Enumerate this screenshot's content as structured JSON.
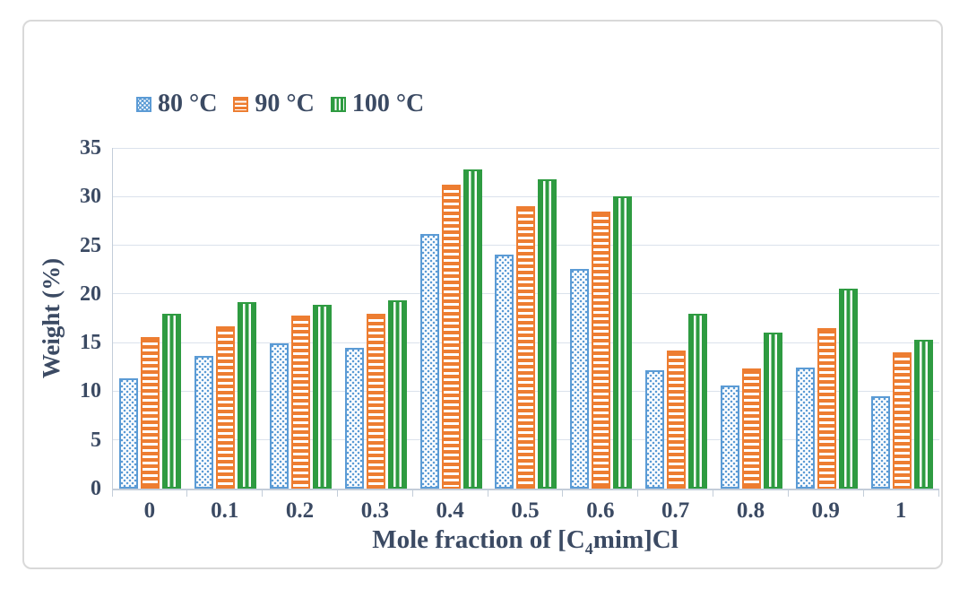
{
  "figure": {
    "frame_border_color": "#d9d9d9",
    "background_color": "#ffffff",
    "text_color": "#3b4a63",
    "grid_color": "#dbe2ec",
    "axis_color": "#c3cdd9"
  },
  "chart_data": {
    "type": "bar",
    "title": "",
    "xlabel": "Mole fraction of [C4mim]Cl",
    "xlabel_parts": {
      "prefix": "Mole fraction of [C",
      "sub": "4",
      "suffix": "mim]Cl"
    },
    "ylabel": "Weight (%)",
    "categories": [
      "0",
      "0.1",
      "0.2",
      "0.3",
      "0.4",
      "0.5",
      "0.6",
      "0.7",
      "0.8",
      "0.9",
      "1"
    ],
    "series": [
      {
        "name": "80 °C",
        "color": "#5b9bd5",
        "pattern": "dots",
        "values": [
          11.3,
          13.6,
          14.9,
          14.5,
          26.2,
          24.0,
          22.6,
          12.2,
          10.6,
          12.4,
          9.5
        ]
      },
      {
        "name": "90 °C",
        "color": "#ed7d31",
        "pattern": "hstripes",
        "values": [
          15.6,
          16.7,
          17.8,
          18.0,
          31.2,
          29.0,
          28.5,
          14.2,
          12.3,
          16.5,
          14.0
        ]
      },
      {
        "name": "100 °C",
        "color": "#2e9b41",
        "pattern": "vstripes",
        "values": [
          18.0,
          19.2,
          18.9,
          19.3,
          32.8,
          31.8,
          30.0,
          18.0,
          16.0,
          20.5,
          15.3
        ]
      }
    ],
    "ylim": [
      0,
      35
    ],
    "yticks": [
      0,
      5,
      10,
      15,
      20,
      25,
      30,
      35
    ],
    "grid": "horizontal",
    "legend_position": "top-left"
  }
}
